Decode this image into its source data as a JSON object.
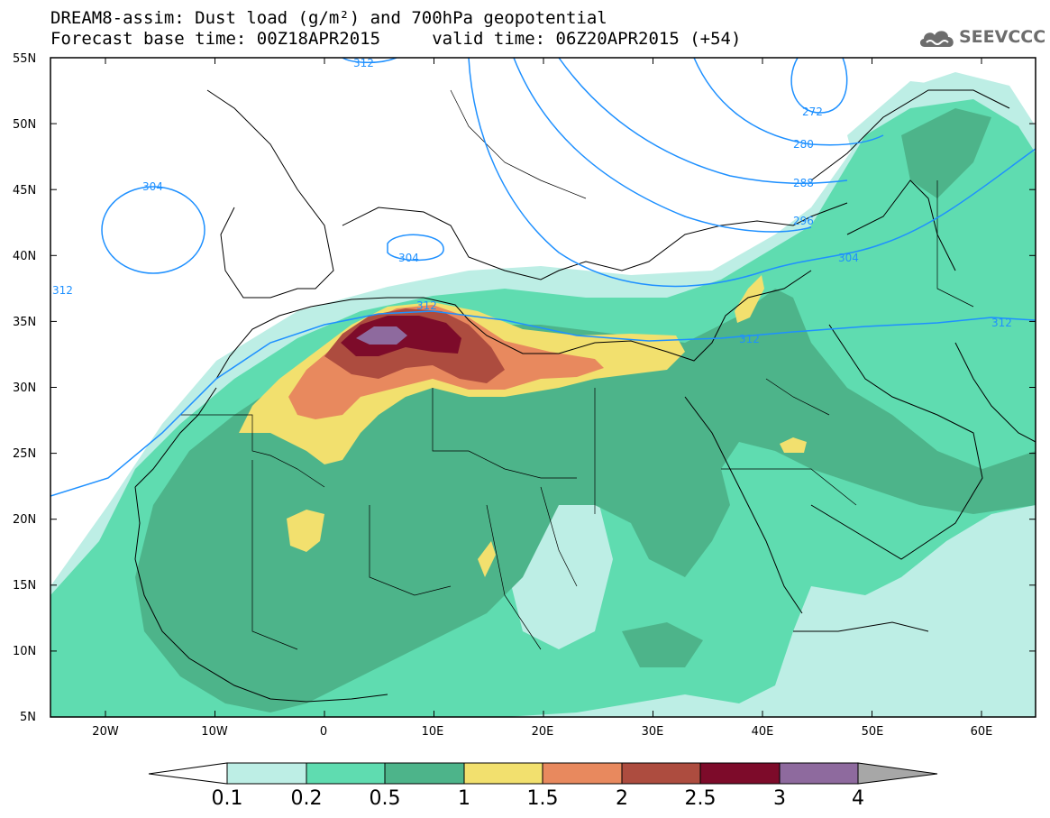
{
  "header": {
    "title_line1": "DREAM8-assim: Dust load (g/m²) and 700hPa geopotential",
    "title_line2": "Forecast base time: 00Z18APR2015     valid time: 06Z20APR2015 (+54)",
    "logo_text": "SEEVCCC"
  },
  "map": {
    "lat_labels": [
      "55N",
      "50N",
      "45N",
      "40N",
      "35N",
      "30N",
      "25N",
      "20N",
      "15N",
      "10N",
      "5N"
    ],
    "lon_labels": [
      "20W",
      "10W",
      "0",
      "10E",
      "20E",
      "30E",
      "40E",
      "50E",
      "60E"
    ],
    "contour_labels": [
      "312",
      "304",
      "304",
      "312",
      "272",
      "280",
      "288",
      "296",
      "304",
      "312",
      "312",
      "312"
    ],
    "contour_color": "#1e90ff",
    "coastline_color": "#000000"
  },
  "colorbar": {
    "tick_labels": [
      "0.1",
      "0.2",
      "0.5",
      "1",
      "1.5",
      "2",
      "2.5",
      "3",
      "4"
    ],
    "colors": [
      "#bdeee5",
      "#5fdcb0",
      "#4db48a",
      "#f2e06e",
      "#e8895e",
      "#ad4c3f",
      "#7d0b2a",
      "#8e6a9e",
      "#a7a7a7"
    ]
  },
  "legend_levels": [
    0.1,
    0.2,
    0.5,
    1,
    1.5,
    2,
    2.5,
    3,
    4
  ]
}
